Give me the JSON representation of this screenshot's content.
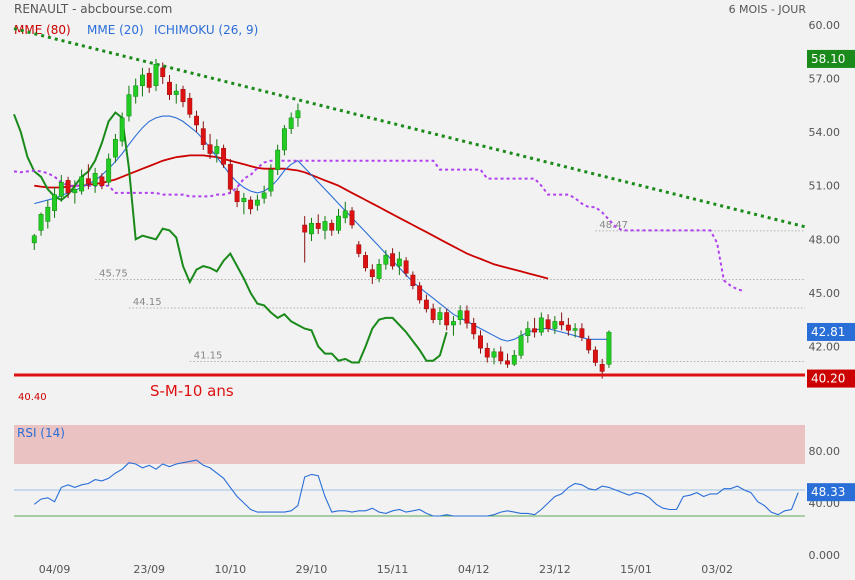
{
  "header": {
    "title": "RENAULT - abcbourse.com",
    "period": "6 MOIS - JOUR"
  },
  "legend": [
    {
      "label": "MME (80)",
      "color": "#cc0000"
    },
    {
      "label": "MME (20)",
      "color": "#2a6ed8"
    },
    {
      "label": "ICHIMOKU (26, 9)",
      "color": "#2a6ed8"
    }
  ],
  "chart_data": {
    "type": "line",
    "title": "RENAULT - abcbourse.com",
    "price_axis": {
      "ylim": [
        37.6,
        60.0
      ],
      "ticks": [
        "60.00",
        "57.00",
        "54.00",
        "51.00",
        "48.00",
        "45.00",
        "42.00"
      ],
      "tick_values": [
        60,
        57,
        54,
        51,
        48,
        45,
        42
      ],
      "badges": [
        {
          "label": "58.10",
          "value": 58.1,
          "color": "#1a8a1a"
        },
        {
          "label": "42.81",
          "value": 42.81,
          "color": "#2a6ed8"
        },
        {
          "label": "40.20",
          "value": 40.2,
          "color": "#cc0000"
        }
      ]
    },
    "x_axis": {
      "labels": [
        "04/09",
        "23/09",
        "10/10",
        "29/10",
        "15/11",
        "04/12",
        "23/12",
        "15/01",
        "03/02"
      ],
      "label_day_index": [
        3,
        17,
        29,
        41,
        53,
        65,
        77,
        89,
        101
      ],
      "day_range": [
        -3,
        114
      ]
    },
    "levels": [
      {
        "label": "45.75",
        "value": 45.75,
        "from_day": 9,
        "style": "dotted"
      },
      {
        "label": "44.15",
        "value": 44.15,
        "from_day": 14,
        "style": "dotted"
      },
      {
        "label": "41.15",
        "value": 41.15,
        "from_day": 23,
        "style": "dotted"
      },
      {
        "label": "48.47",
        "value": 48.47,
        "from_day": 83,
        "style": "dotted"
      }
    ],
    "support": {
      "label": "40.40",
      "value": 40.4,
      "annotation": "S-M-10 ans",
      "color": "#dd1111"
    },
    "trendline": {
      "from": [
        -3,
        59.8
      ],
      "to": [
        114,
        48.7
      ],
      "color": "#1a8a1a"
    },
    "candles": [
      {
        "o": 47.8,
        "h": 48.3,
        "l": 47.4,
        "c": 48.2
      },
      {
        "o": 48.5,
        "h": 49.5,
        "l": 48.2,
        "c": 49.4
      },
      {
        "o": 49.0,
        "h": 50.2,
        "l": 48.6,
        "c": 49.8
      },
      {
        "o": 49.6,
        "h": 50.9,
        "l": 49.2,
        "c": 50.5
      },
      {
        "o": 50.4,
        "h": 51.6,
        "l": 50.1,
        "c": 51.2
      },
      {
        "o": 51.3,
        "h": 51.5,
        "l": 50.3,
        "c": 50.6
      },
      {
        "o": 50.6,
        "h": 51.3,
        "l": 50.0,
        "c": 50.8
      },
      {
        "o": 50.7,
        "h": 51.9,
        "l": 50.5,
        "c": 51.5
      },
      {
        "o": 51.4,
        "h": 52.2,
        "l": 50.8,
        "c": 51.1
      },
      {
        "o": 51.0,
        "h": 52.0,
        "l": 50.6,
        "c": 51.7
      },
      {
        "o": 51.5,
        "h": 51.7,
        "l": 50.8,
        "c": 51.0
      },
      {
        "o": 51.2,
        "h": 52.8,
        "l": 51.0,
        "c": 52.5
      },
      {
        "o": 52.6,
        "h": 53.9,
        "l": 52.3,
        "c": 53.6
      },
      {
        "o": 53.5,
        "h": 55.1,
        "l": 53.2,
        "c": 54.8
      },
      {
        "o": 54.9,
        "h": 56.6,
        "l": 54.6,
        "c": 56.1
      },
      {
        "o": 56.0,
        "h": 57.0,
        "l": 55.6,
        "c": 56.6
      },
      {
        "o": 56.6,
        "h": 57.6,
        "l": 56.0,
        "c": 57.2
      },
      {
        "o": 57.3,
        "h": 57.6,
        "l": 56.2,
        "c": 56.5
      },
      {
        "o": 56.6,
        "h": 58.1,
        "l": 56.3,
        "c": 57.8
      },
      {
        "o": 57.6,
        "h": 57.9,
        "l": 56.7,
        "c": 57.1
      },
      {
        "o": 56.8,
        "h": 57.2,
        "l": 55.8,
        "c": 56.1
      },
      {
        "o": 56.1,
        "h": 56.7,
        "l": 55.6,
        "c": 56.3
      },
      {
        "o": 56.4,
        "h": 56.6,
        "l": 55.4,
        "c": 55.7
      },
      {
        "o": 55.9,
        "h": 56.2,
        "l": 54.8,
        "c": 55.0
      },
      {
        "o": 54.9,
        "h": 55.2,
        "l": 54.0,
        "c": 54.4
      },
      {
        "o": 54.2,
        "h": 54.6,
        "l": 53.0,
        "c": 53.3
      },
      {
        "o": 53.3,
        "h": 53.9,
        "l": 52.5,
        "c": 52.8
      },
      {
        "o": 52.8,
        "h": 53.6,
        "l": 52.3,
        "c": 53.2
      },
      {
        "o": 53.1,
        "h": 53.3,
        "l": 52.0,
        "c": 52.2
      },
      {
        "o": 52.2,
        "h": 52.5,
        "l": 50.6,
        "c": 50.8
      },
      {
        "o": 50.7,
        "h": 50.9,
        "l": 49.8,
        "c": 50.1
      },
      {
        "o": 50.1,
        "h": 50.6,
        "l": 49.4,
        "c": 50.3
      },
      {
        "o": 50.2,
        "h": 50.4,
        "l": 49.4,
        "c": 49.7
      },
      {
        "o": 49.9,
        "h": 50.5,
        "l": 49.6,
        "c": 50.2
      },
      {
        "o": 50.3,
        "h": 51.0,
        "l": 50.0,
        "c": 50.6
      },
      {
        "o": 50.7,
        "h": 52.2,
        "l": 50.4,
        "c": 51.9
      },
      {
        "o": 51.9,
        "h": 53.3,
        "l": 51.6,
        "c": 53.0
      },
      {
        "o": 53.0,
        "h": 54.4,
        "l": 52.7,
        "c": 54.2
      },
      {
        "o": 54.2,
        "h": 55.1,
        "l": 53.9,
        "c": 54.8
      },
      {
        "o": 54.8,
        "h": 55.6,
        "l": 54.3,
        "c": 55.2
      },
      {
        "o": 48.8,
        "h": 49.3,
        "l": 46.7,
        "c": 48.4
      },
      {
        "o": 48.3,
        "h": 49.2,
        "l": 47.9,
        "c": 48.9
      },
      {
        "o": 48.9,
        "h": 49.4,
        "l": 48.3,
        "c": 48.6
      },
      {
        "o": 48.5,
        "h": 49.3,
        "l": 48.0,
        "c": 49.0
      },
      {
        "o": 48.9,
        "h": 49.1,
        "l": 48.2,
        "c": 48.5
      },
      {
        "o": 48.5,
        "h": 49.7,
        "l": 48.3,
        "c": 49.3
      },
      {
        "o": 49.2,
        "h": 50.1,
        "l": 48.9,
        "c": 49.6
      },
      {
        "o": 49.6,
        "h": 49.8,
        "l": 48.6,
        "c": 48.8
      },
      {
        "o": 47.7,
        "h": 47.9,
        "l": 47.0,
        "c": 47.2
      },
      {
        "o": 47.1,
        "h": 47.3,
        "l": 46.2,
        "c": 46.4
      },
      {
        "o": 46.3,
        "h": 46.6,
        "l": 45.5,
        "c": 45.9
      },
      {
        "o": 45.8,
        "h": 46.9,
        "l": 45.6,
        "c": 46.6
      },
      {
        "o": 46.6,
        "h": 47.4,
        "l": 46.3,
        "c": 47.1
      },
      {
        "o": 47.2,
        "h": 47.5,
        "l": 46.3,
        "c": 46.5
      },
      {
        "o": 46.5,
        "h": 47.3,
        "l": 46.0,
        "c": 46.9
      },
      {
        "o": 46.8,
        "h": 47.0,
        "l": 45.9,
        "c": 46.1
      },
      {
        "o": 46.0,
        "h": 46.2,
        "l": 45.2,
        "c": 45.4
      },
      {
        "o": 45.4,
        "h": 45.6,
        "l": 44.4,
        "c": 44.6
      },
      {
        "o": 44.6,
        "h": 44.9,
        "l": 43.9,
        "c": 44.1
      },
      {
        "o": 44.1,
        "h": 44.4,
        "l": 43.3,
        "c": 43.5
      },
      {
        "o": 43.5,
        "h": 44.2,
        "l": 43.2,
        "c": 43.9
      },
      {
        "o": 43.9,
        "h": 44.1,
        "l": 42.9,
        "c": 43.2
      },
      {
        "o": 43.2,
        "h": 43.7,
        "l": 42.6,
        "c": 43.4
      },
      {
        "o": 43.5,
        "h": 44.3,
        "l": 43.2,
        "c": 44.0
      },
      {
        "o": 44.0,
        "h": 44.3,
        "l": 43.0,
        "c": 43.3
      },
      {
        "o": 43.3,
        "h": 43.6,
        "l": 42.4,
        "c": 42.7
      },
      {
        "o": 42.6,
        "h": 42.9,
        "l": 41.6,
        "c": 41.9
      },
      {
        "o": 41.9,
        "h": 42.2,
        "l": 41.1,
        "c": 41.4
      },
      {
        "o": 41.4,
        "h": 41.9,
        "l": 41.0,
        "c": 41.7
      },
      {
        "o": 41.7,
        "h": 42.0,
        "l": 41.0,
        "c": 41.2
      },
      {
        "o": 41.2,
        "h": 41.6,
        "l": 40.8,
        "c": 41.0
      },
      {
        "o": 41.0,
        "h": 41.8,
        "l": 40.9,
        "c": 41.5
      },
      {
        "o": 41.5,
        "h": 42.9,
        "l": 41.3,
        "c": 42.6
      },
      {
        "o": 42.6,
        "h": 43.4,
        "l": 42.2,
        "c": 43.0
      },
      {
        "o": 43.0,
        "h": 43.6,
        "l": 42.5,
        "c": 42.8
      },
      {
        "o": 42.8,
        "h": 43.9,
        "l": 42.6,
        "c": 43.6
      },
      {
        "o": 43.5,
        "h": 43.8,
        "l": 42.8,
        "c": 43.0
      },
      {
        "o": 43.0,
        "h": 43.7,
        "l": 42.7,
        "c": 43.4
      },
      {
        "o": 43.4,
        "h": 43.9,
        "l": 42.9,
        "c": 43.2
      },
      {
        "o": 43.2,
        "h": 43.6,
        "l": 42.6,
        "c": 42.9
      },
      {
        "o": 42.9,
        "h": 43.3,
        "l": 42.5,
        "c": 43.0
      },
      {
        "o": 43.0,
        "h": 43.3,
        "l": 42.3,
        "c": 42.5
      },
      {
        "o": 42.4,
        "h": 42.6,
        "l": 41.6,
        "c": 41.8
      },
      {
        "o": 41.8,
        "h": 42.0,
        "l": 40.9,
        "c": 41.1
      },
      {
        "o": 41.0,
        "h": 41.3,
        "l": 40.2,
        "c": 40.6
      },
      {
        "o": 41.0,
        "h": 42.9,
        "l": 40.8,
        "c": 42.8
      }
    ],
    "series": [
      {
        "key": "mme80",
        "name": "MME (80)",
        "color": "#cc0000",
        "start_day": 0,
        "values": [
          51.0,
          50.95,
          50.9,
          50.9,
          50.9,
          50.95,
          51.0,
          51.0,
          51.05,
          51.1,
          51.15,
          51.25,
          51.35,
          51.5,
          51.65,
          51.8,
          51.95,
          52.1,
          52.25,
          52.4,
          52.5,
          52.6,
          52.65,
          52.7,
          52.7,
          52.7,
          52.65,
          52.6,
          52.5,
          52.4,
          52.3,
          52.2,
          52.1,
          52.0,
          51.95,
          51.95,
          51.95,
          51.95,
          51.9,
          51.85,
          51.75,
          51.6,
          51.45,
          51.3,
          51.15,
          51.0,
          50.8,
          50.6,
          50.4,
          50.2,
          50.0,
          49.8,
          49.6,
          49.4,
          49.2,
          49.0,
          48.8,
          48.6,
          48.4,
          48.2,
          48.0,
          47.8,
          47.6,
          47.4,
          47.2,
          47.05,
          46.9,
          46.75,
          46.6,
          46.5,
          46.4,
          46.3,
          46.2,
          46.1,
          46.0,
          45.9,
          45.8
        ]
      },
      {
        "key": "mme20",
        "name": "MME (20)",
        "color": "#2a6ed8",
        "start_day": 0,
        "values": [
          50.0,
          50.1,
          50.2,
          50.3,
          50.45,
          50.6,
          50.75,
          50.9,
          51.1,
          51.3,
          51.6,
          51.95,
          52.35,
          52.8,
          53.3,
          53.8,
          54.25,
          54.6,
          54.8,
          54.9,
          54.9,
          54.8,
          54.6,
          54.3,
          54.0,
          53.6,
          53.1,
          52.6,
          52.1,
          51.6,
          51.2,
          50.9,
          50.7,
          50.6,
          50.7,
          50.95,
          51.35,
          51.85,
          52.2,
          52.4,
          52.0,
          51.6,
          51.2,
          50.8,
          50.4,
          50.0,
          49.6,
          49.2,
          48.8,
          48.4,
          48.0,
          47.6,
          47.2,
          46.8,
          46.4,
          46.0,
          45.6,
          45.3,
          45.0,
          44.7,
          44.4,
          44.1,
          43.8,
          43.6,
          43.4,
          43.2,
          43.0,
          42.8,
          42.6,
          42.4,
          42.3,
          42.4,
          42.6,
          42.8,
          42.9,
          43.0,
          43.0,
          42.9,
          42.8,
          42.7,
          42.6,
          42.5,
          42.4,
          42.4,
          42.4,
          42.4
        ]
      },
      {
        "key": "chikou",
        "name": "",
        "color": "#1a8a1a",
        "start_day": -3,
        "values": [
          55.0,
          54.0,
          52.6,
          51.8,
          51.5,
          50.8,
          50.4,
          50.2,
          50.5,
          51.0,
          51.5,
          51.8,
          52.4,
          53.4,
          54.6,
          55.1,
          54.8,
          52.0,
          48.0,
          48.2,
          48.1,
          48.0,
          48.6,
          48.5,
          48.1,
          46.5,
          45.6,
          46.3,
          46.5,
          46.4,
          46.2,
          46.8,
          47.2,
          46.5,
          45.8,
          45.0,
          44.4,
          44.3,
          43.9,
          43.6,
          43.8,
          43.4,
          43.2,
          43.0,
          42.9,
          42.0,
          41.6,
          41.6,
          41.2,
          41.3,
          41.1,
          41.1,
          42.0,
          43.0,
          43.5,
          43.6,
          43.6,
          43.2,
          42.8,
          42.3,
          41.8,
          41.2,
          41.2,
          41.5,
          42.8
        ]
      },
      {
        "key": "cloud",
        "name": "",
        "color": "#b040f0",
        "start_day": -3,
        "values": [
          51.8,
          51.75,
          51.8,
          51.85,
          51.8,
          51.7,
          51.5,
          51.2,
          51.0,
          51.0,
          51.0,
          51.0,
          51.0,
          51.0,
          51.0,
          50.6,
          50.6,
          50.6,
          50.6,
          50.6,
          50.6,
          50.6,
          50.5,
          50.5,
          50.5,
          50.5,
          50.4,
          50.4,
          50.4,
          50.4,
          50.5,
          50.5,
          50.6,
          50.9,
          51.4,
          51.6,
          52.0,
          52.3,
          52.4,
          52.4,
          52.4,
          52.4,
          52.4,
          52.4,
          52.4,
          52.4,
          52.4,
          52.4,
          52.4,
          52.4,
          52.4,
          52.4,
          52.4,
          52.4,
          52.4,
          52.4,
          52.4,
          52.4,
          52.4,
          52.4,
          52.4,
          52.4,
          52.4,
          51.9,
          51.9,
          51.9,
          51.9,
          51.9,
          51.9,
          51.9,
          51.4,
          51.4,
          51.4,
          51.4,
          51.4,
          51.4,
          51.4,
          51.4,
          51.0,
          50.5,
          50.5,
          50.5,
          50.5,
          50.3,
          50.0,
          49.8,
          49.8,
          49.5,
          49.1,
          48.7,
          48.5,
          48.5,
          48.5,
          48.5,
          48.5,
          48.5,
          48.5,
          48.5,
          48.5,
          48.5,
          48.5,
          48.5,
          48.5,
          48.5,
          47.8,
          45.7,
          45.4,
          45.2,
          45.1
        ]
      }
    ],
    "rsi": {
      "label": "RSI (14)",
      "ylim": [
        0,
        100
      ],
      "ticks": [
        "80.00",
        "40.00",
        "0.000"
      ],
      "tick_values": [
        80,
        40,
        0
      ],
      "overbought": 70,
      "mid": 50,
      "oversold": 30,
      "badge": {
        "label": "48.33",
        "value": 48.33,
        "color": "#2a6ed8"
      },
      "values": [
        39,
        43,
        44,
        41,
        52,
        54,
        52,
        54,
        55,
        58,
        57,
        59,
        63,
        66,
        71,
        70,
        67,
        69,
        66,
        70,
        68,
        70,
        71,
        72,
        73,
        69,
        67,
        63,
        59,
        52,
        45,
        40,
        35,
        33,
        33,
        33,
        33,
        33,
        34,
        38,
        60,
        62,
        61,
        45,
        33,
        34,
        34,
        33,
        34,
        34,
        36,
        33,
        32,
        34,
        35,
        33,
        34,
        35,
        32,
        30,
        30,
        31,
        30,
        30,
        30,
        30,
        30,
        30,
        31,
        33,
        34,
        33,
        32,
        32,
        31,
        35,
        40,
        45,
        47,
        52,
        55,
        54,
        51,
        50,
        53,
        52,
        50,
        48,
        46,
        48,
        47,
        44,
        39,
        36,
        35,
        35,
        45,
        46,
        48,
        45,
        47,
        47,
        51,
        51,
        53,
        50,
        48,
        41,
        38,
        33,
        31,
        34,
        35,
        48
      ]
    }
  }
}
